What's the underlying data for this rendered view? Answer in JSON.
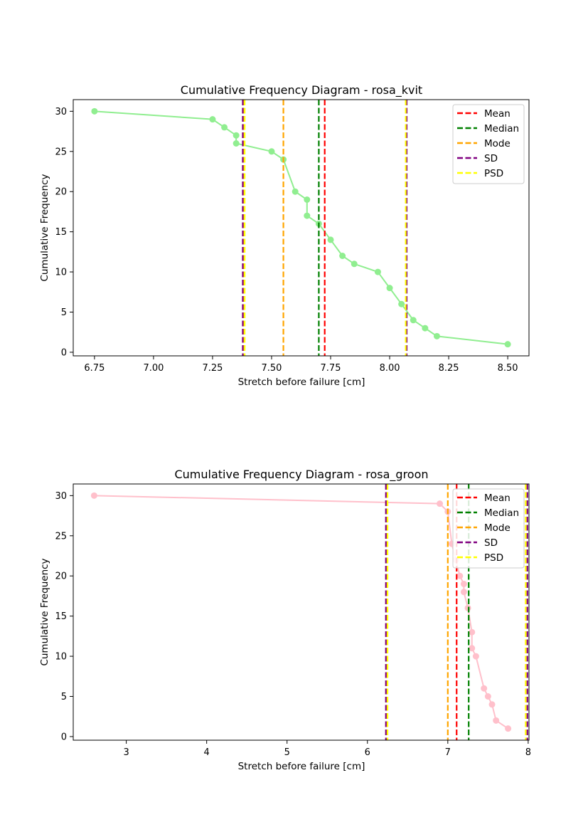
{
  "chart_data": [
    {
      "type": "line",
      "title": "Cumulative Frequency Diagram - rosa_kvit",
      "xlabel": "Stretch before failure [cm]",
      "ylabel": "Cumulative Frequency",
      "xlim": [
        6.66,
        8.59
      ],
      "ylim": [
        -0.45,
        31.45
      ],
      "xticks": [
        6.75,
        7.0,
        7.25,
        7.5,
        7.75,
        8.0,
        8.25,
        8.5
      ],
      "xtick_labels": [
        "6.75",
        "7.00",
        "7.25",
        "7.50",
        "7.75",
        "8.00",
        "8.25",
        "8.50"
      ],
      "yticks": [
        0,
        5,
        10,
        15,
        20,
        25,
        30
      ],
      "ytick_labels": [
        "0",
        "5",
        "10",
        "15",
        "20",
        "25",
        "30"
      ],
      "grid": false,
      "legend_position": "top-right",
      "series": [
        {
          "color": "#90ee90",
          "x": [
            6.75,
            7.25,
            7.3,
            7.35,
            7.35,
            7.5,
            7.55,
            7.6,
            7.65,
            7.65,
            7.7,
            7.75,
            7.8,
            7.85,
            7.95,
            8.0,
            8.05,
            8.1,
            8.15,
            8.2,
            8.5
          ],
          "y": [
            30,
            29,
            28,
            27,
            26,
            25,
            24,
            20,
            19,
            17,
            16,
            14,
            12,
            11,
            10,
            8,
            6,
            4,
            3,
            2,
            1
          ]
        }
      ],
      "vlines": [
        {
          "label": "Mean",
          "color": "#ff0000",
          "x": [
            7.725
          ]
        },
        {
          "label": "Median",
          "color": "#008000",
          "x": [
            7.7
          ]
        },
        {
          "label": "Mode",
          "color": "#ffa500",
          "x": [
            7.55,
            7.38,
            8.07
          ]
        },
        {
          "label": "SD",
          "color": "#800080",
          "x": [
            7.378,
            8.072
          ]
        },
        {
          "label": "PSD",
          "color": "#ffff00",
          "x": [
            7.386,
            8.068
          ]
        }
      ]
    },
    {
      "type": "line",
      "title": "Cumulative Frequency Diagram - rosa_groon",
      "xlabel": "Stretch before failure [cm]",
      "ylabel": "Cumulative Frequency",
      "xlim": [
        2.34,
        8.01
      ],
      "ylim": [
        -0.45,
        31.45
      ],
      "xticks": [
        3,
        4,
        5,
        6,
        7,
        8
      ],
      "xtick_labels": [
        "3",
        "4",
        "5",
        "6",
        "7",
        "8"
      ],
      "yticks": [
        0,
        5,
        10,
        15,
        20,
        25,
        30
      ],
      "ytick_labels": [
        "0",
        "5",
        "10",
        "15",
        "20",
        "25",
        "30"
      ],
      "grid": false,
      "legend_position": "top-right",
      "series": [
        {
          "color": "#ffc0cb",
          "x": [
            2.6,
            6.9,
            7.0,
            7.05,
            7.1,
            7.15,
            7.2,
            7.2,
            7.25,
            7.3,
            7.3,
            7.35,
            7.45,
            7.5,
            7.55,
            7.6,
            7.75
          ],
          "y": [
            30,
            29,
            28,
            24,
            22,
            20,
            19,
            18,
            16,
            13,
            11,
            10,
            6,
            5,
            4,
            2,
            1
          ]
        }
      ],
      "vlines": [
        {
          "label": "Mean",
          "color": "#ff0000",
          "x": [
            7.11
          ]
        },
        {
          "label": "Median",
          "color": "#008000",
          "x": [
            7.26
          ]
        },
        {
          "label": "Mode",
          "color": "#ffa500",
          "x": [
            7.0,
            6.24,
            7.97
          ]
        },
        {
          "label": "SD",
          "color": "#800080",
          "x": [
            6.23,
            7.99
          ]
        },
        {
          "label": "PSD",
          "color": "#ffff00",
          "x": [
            6.25,
            7.97
          ]
        }
      ]
    }
  ]
}
